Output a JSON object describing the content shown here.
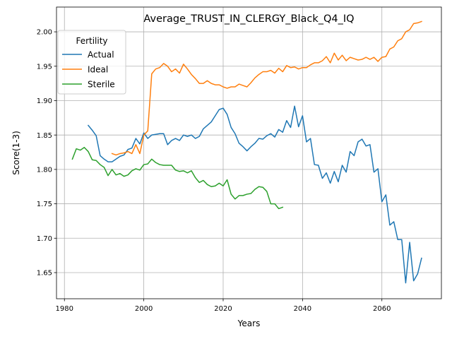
{
  "chart_data": {
    "type": "line",
    "title": "Average_TRUST_IN_CLERGY_Black_Q4_IQ",
    "xlabel": "Years",
    "ylabel": "Score(1-3)",
    "xlim": [
      1978,
      2075
    ],
    "ylim": [
      1.612,
      2.036
    ],
    "xticks": [
      1980,
      2000,
      2020,
      2040,
      2060
    ],
    "yticks": [
      1.65,
      1.7,
      1.75,
      1.8,
      1.85,
      1.9,
      1.95,
      2.0
    ],
    "ytick_labels": [
      "1.65",
      "1.70",
      "1.75",
      "1.80",
      "1.85",
      "1.90",
      "1.95",
      "2.00"
    ],
    "grid": true,
    "legend": {
      "title": "Fertility",
      "placement": "top-left"
    },
    "series": [
      {
        "name": "Actual",
        "color": "#1f77b4",
        "x": [
          1986,
          1987,
          1988,
          1989,
          1990,
          1991,
          1992,
          1993,
          1994,
          1995,
          1996,
          1997,
          1998,
          1999,
          2000,
          2001,
          2002,
          2003,
          2004,
          2005,
          2006,
          2007,
          2008,
          2009,
          2010,
          2011,
          2012,
          2013,
          2014,
          2015,
          2016,
          2017,
          2018,
          2019,
          2020,
          2021,
          2022,
          2023,
          2024,
          2025,
          2026,
          2027,
          2028,
          2029,
          2030,
          2031,
          2032,
          2033,
          2034,
          2035,
          2036,
          2037,
          2038,
          2039,
          2040,
          2041,
          2042,
          2043,
          2044,
          2045,
          2046,
          2047,
          2048,
          2049,
          2050,
          2051,
          2052,
          2053,
          2054,
          2055,
          2056,
          2057,
          2058,
          2059,
          2060,
          2061,
          2062,
          2063,
          2064,
          2065,
          2066,
          2067,
          2068,
          2069,
          2070
        ],
        "values": [
          1.864,
          1.857,
          1.849,
          1.82,
          1.815,
          1.811,
          1.811,
          1.815,
          1.819,
          1.821,
          1.829,
          1.831,
          1.845,
          1.837,
          1.853,
          1.845,
          1.85,
          1.851,
          1.852,
          1.852,
          1.836,
          1.842,
          1.845,
          1.842,
          1.85,
          1.848,
          1.85,
          1.845,
          1.848,
          1.859,
          1.864,
          1.869,
          1.878,
          1.887,
          1.889,
          1.88,
          1.861,
          1.852,
          1.838,
          1.833,
          1.827,
          1.833,
          1.838,
          1.845,
          1.844,
          1.849,
          1.852,
          1.847,
          1.858,
          1.854,
          1.871,
          1.861,
          1.892,
          1.862,
          1.878,
          1.84,
          1.845,
          1.807,
          1.806,
          1.787,
          1.795,
          1.78,
          1.797,
          1.782,
          1.806,
          1.796,
          1.826,
          1.82,
          1.84,
          1.844,
          1.834,
          1.836,
          1.796,
          1.801,
          1.753,
          1.763,
          1.719,
          1.724,
          1.698,
          1.698,
          1.635,
          1.694,
          1.638,
          1.648,
          1.671
        ]
      },
      {
        "name": "Ideal",
        "color": "#ff7f0e",
        "x": [
          1992,
          1993,
          1994,
          1995,
          1996,
          1997,
          1998,
          1999,
          2000,
          2001,
          2002,
          2003,
          2004,
          2005,
          2006,
          2007,
          2008,
          2009,
          2010,
          2011,
          2012,
          2013,
          2014,
          2015,
          2016,
          2017,
          2018,
          2019,
          2020,
          2021,
          2022,
          2023,
          2024,
          2025,
          2026,
          2027,
          2028,
          2029,
          2030,
          2031,
          2032,
          2033,
          2034,
          2035,
          2036,
          2037,
          2038,
          2039,
          2040,
          2041,
          2042,
          2043,
          2044,
          2045,
          2046,
          2047,
          2048,
          2049,
          2050,
          2051,
          2052,
          2053,
          2054,
          2055,
          2056,
          2057,
          2058,
          2059,
          2060,
          2061,
          2062,
          2063,
          2064,
          2065,
          2066,
          2067,
          2068,
          2069,
          2070
        ],
        "values": [
          1.823,
          1.821,
          1.823,
          1.824,
          1.826,
          1.823,
          1.836,
          1.823,
          1.85,
          1.856,
          1.939,
          1.946,
          1.948,
          1.954,
          1.95,
          1.942,
          1.946,
          1.94,
          1.953,
          1.946,
          1.938,
          1.932,
          1.925,
          1.925,
          1.929,
          1.925,
          1.923,
          1.923,
          1.92,
          1.918,
          1.92,
          1.92,
          1.924,
          1.922,
          1.92,
          1.926,
          1.933,
          1.938,
          1.942,
          1.942,
          1.944,
          1.94,
          1.947,
          1.942,
          1.951,
          1.948,
          1.949,
          1.946,
          1.948,
          1.948,
          1.952,
          1.955,
          1.955,
          1.958,
          1.964,
          1.955,
          1.969,
          1.959,
          1.966,
          1.958,
          1.963,
          1.961,
          1.959,
          1.96,
          1.963,
          1.96,
          1.963,
          1.957,
          1.963,
          1.964,
          1.975,
          1.978,
          1.987,
          1.99,
          2.0,
          2.003,
          2.012,
          2.013,
          2.015
        ]
      },
      {
        "name": "Sterile",
        "color": "#2ca02c",
        "x": [
          1982,
          1983,
          1984,
          1985,
          1986,
          1987,
          1988,
          1989,
          1990,
          1991,
          1992,
          1993,
          1994,
          1995,
          1996,
          1997,
          1998,
          1999,
          2000,
          2001,
          2002,
          2003,
          2004,
          2005,
          2006,
          2007,
          2008,
          2009,
          2010,
          2011,
          2012,
          2013,
          2014,
          2015,
          2016,
          2017,
          2018,
          2019,
          2020,
          2021,
          2022,
          2023,
          2024,
          2025,
          2026,
          2027,
          2028,
          2029,
          2030,
          2031,
          2032,
          2033,
          2034,
          2035
        ],
        "values": [
          1.815,
          1.83,
          1.828,
          1.832,
          1.826,
          1.814,
          1.813,
          1.807,
          1.803,
          1.791,
          1.8,
          1.792,
          1.794,
          1.79,
          1.792,
          1.798,
          1.801,
          1.799,
          1.807,
          1.808,
          1.815,
          1.81,
          1.807,
          1.806,
          1.806,
          1.806,
          1.799,
          1.797,
          1.798,
          1.795,
          1.798,
          1.788,
          1.781,
          1.784,
          1.778,
          1.775,
          1.776,
          1.78,
          1.776,
          1.785,
          1.764,
          1.757,
          1.762,
          1.762,
          1.764,
          1.765,
          1.771,
          1.775,
          1.774,
          1.768,
          1.75,
          1.75,
          1.743,
          1.745
        ]
      }
    ]
  }
}
